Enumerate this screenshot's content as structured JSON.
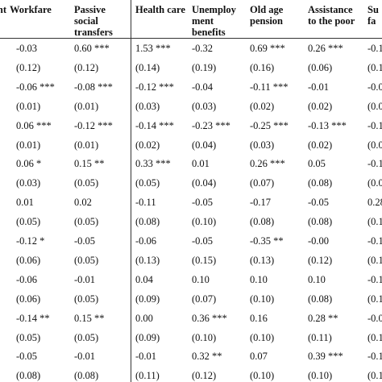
{
  "table": {
    "header": [
      [
        "nt"
      ],
      [
        "Workfare"
      ],
      [
        "Passive",
        "social",
        "transfers"
      ],
      [
        "Health care"
      ],
      [
        "Unemploy",
        "ment",
        "benefits"
      ],
      [
        "Old age",
        "pension"
      ],
      [
        "Assistance",
        "to the poor"
      ],
      [
        "Su",
        "fa"
      ]
    ],
    "rows": [
      [
        "-0.03",
        "0.60 ***",
        "1.53 ***",
        "-0.32",
        "0.69 ***",
        "0.26 ***",
        "-0.1"
      ],
      [
        "(0.12)",
        "(0.12)",
        "(0.14)",
        "(0.19)",
        "(0.16)",
        "(0.06)",
        "(0.1"
      ],
      [
        "-0.06 ***",
        "-0.08 ***",
        "-0.12 ***",
        "-0.04",
        "-0.11 ***",
        "-0.01",
        "-0.0"
      ],
      [
        "(0.01)",
        "(0.01)",
        "(0.03)",
        "(0.03)",
        "(0.02)",
        "(0.02)",
        "(0.0"
      ],
      [
        "0.06 ***",
        "-0.12 ***",
        "-0.14 ***",
        "-0.23 ***",
        "-0.25 ***",
        "-0.13 ***",
        "-0.1"
      ],
      [
        "(0.01)",
        "(0.01)",
        "(0.02)",
        "(0.04)",
        "(0.03)",
        "(0.02)",
        "(0.0"
      ],
      [
        "0.06 *",
        "0.15 **",
        "0.33 ***",
        "0.01",
        "0.26 ***",
        "0.05",
        "-0.1"
      ],
      [
        "(0.03)",
        "(0.05)",
        "(0.05)",
        "(0.04)",
        "(0.07)",
        "(0.08)",
        "(0.0"
      ],
      [
        "0.01",
        "0.02",
        "-0.11",
        "-0.05",
        "-0.17",
        "-0.05",
        "0.28"
      ],
      [
        "(0.05)",
        "(0.05)",
        "(0.08)",
        "(0.10)",
        "(0.08)",
        "(0.08)",
        "(0.1"
      ],
      [
        "-0.12 *",
        "-0.05",
        "-0.06",
        "-0.05",
        "-0.35 **",
        "-0.00",
        "-0.1"
      ],
      [
        "(0.06)",
        "(0.05)",
        "(0.13)",
        "(0.15)",
        "(0.13)",
        "(0.12)",
        "(0.1"
      ],
      [
        "-0.06",
        "-0.01",
        "0.04",
        "0.10",
        "0.10",
        "0.10",
        "-0.1"
      ],
      [
        "(0.06)",
        "(0.05)",
        "(0.09)",
        "(0.07)",
        "(0.10)",
        "(0.08)",
        "(0.1"
      ],
      [
        "-0.14 **",
        "0.15 **",
        "0.00",
        "0.36 ***",
        "0.16",
        "0.28 **",
        "-0.0"
      ],
      [
        "(0.05)",
        "(0.05)",
        "(0.09)",
        "(0.10)",
        "(0.10)",
        "(0.11)",
        "(0.1"
      ],
      [
        "-0.05",
        "-0.01",
        "-0.01",
        "0.32 **",
        "0.07",
        "0.39 ***",
        "-0.1"
      ],
      [
        "(0.08)",
        "(0.08)",
        "(0.11)",
        "(0.12)",
        "(0.10)",
        "(0.10)",
        "(0.1"
      ]
    ]
  }
}
